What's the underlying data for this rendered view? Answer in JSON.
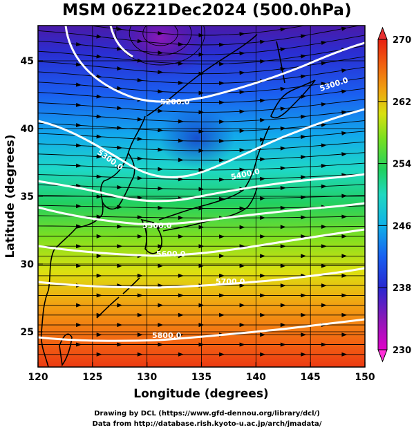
{
  "title": "MSM 06Z21Dec2024 (500.0hPa)",
  "credits": {
    "line1": "Drawing by DCL (https://www.gfd-dennou.org/library/dcl/)",
    "line2": "Data from http://database.rish.kyoto-u.ac.jp/arch/jmadata/"
  },
  "map": {
    "xlabel": "Longitude (degrees)",
    "ylabel": "Latitude  (degrees)",
    "lon_range": [
      120,
      150
    ],
    "lat_range": [
      22.4,
      47.6
    ],
    "lon_ticks": [
      "120",
      "125",
      "130",
      "135",
      "140",
      "145",
      "150"
    ],
    "lat_ticks": [
      "25",
      "30",
      "35",
      "40",
      "45"
    ],
    "contours": [
      {
        "label": "5200.0"
      },
      {
        "label": "5300.0"
      },
      {
        "label": "5300.0"
      },
      {
        "label": "5400.0"
      },
      {
        "label": "5500.0"
      },
      {
        "label": "5600.0"
      },
      {
        "label": "5700.0"
      },
      {
        "label": "5800.0"
      }
    ],
    "field": "temperature shading with height contours and streamlines",
    "contour_color": "#ffffff",
    "coastline_color": "#000000"
  },
  "colorbar": {
    "ticks": [
      "230",
      "238",
      "246",
      "254",
      "262",
      "270"
    ],
    "range": [
      230,
      270
    ],
    "colors": [
      "#e000c8",
      "#7f1fb0",
      "#2828d0",
      "#1860f0",
      "#10b0e8",
      "#20d8c0",
      "#20d060",
      "#78e020",
      "#d8e010",
      "#f0a010",
      "#f06010",
      "#e82010"
    ]
  }
}
